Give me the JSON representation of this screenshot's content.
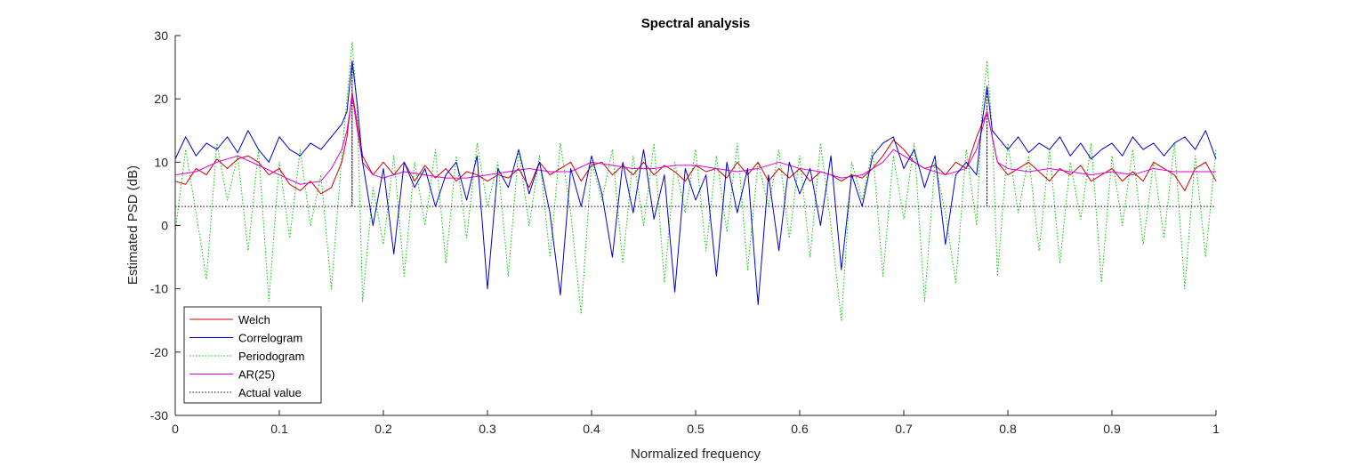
{
  "chart_data": {
    "type": "line",
    "title": "Spectral analysis",
    "xlabel": "Normalized frequency",
    "ylabel": "Estimated PSD (dB)",
    "xlim": [
      0,
      1
    ],
    "ylim": [
      -30,
      30
    ],
    "xticks": [
      0,
      0.1,
      0.2,
      0.3,
      0.4,
      0.5,
      0.6,
      0.7,
      0.8,
      0.9,
      1
    ],
    "xtick_labels": [
      "0",
      "0.1",
      "0.2",
      "0.3",
      "0.4",
      "0.5",
      "0.6",
      "0.7",
      "0.8",
      "0.9",
      "1"
    ],
    "yticks": [
      -30,
      -20,
      -10,
      0,
      10,
      20,
      30
    ],
    "ytick_labels": [
      "-30",
      "-20",
      "-10",
      "0",
      "10",
      "20",
      "30"
    ],
    "grid": false,
    "legend_position": "bottom-left",
    "series": [
      {
        "name": "Welch",
        "color": "#d40000",
        "style": "solid",
        "x": [
          0,
          0.01,
          0.02,
          0.03,
          0.04,
          0.05,
          0.06,
          0.07,
          0.08,
          0.09,
          0.1,
          0.11,
          0.12,
          0.13,
          0.14,
          0.15,
          0.16,
          0.165,
          0.17,
          0.175,
          0.18,
          0.19,
          0.2,
          0.21,
          0.22,
          0.23,
          0.24,
          0.25,
          0.26,
          0.27,
          0.28,
          0.29,
          0.3,
          0.31,
          0.32,
          0.33,
          0.34,
          0.35,
          0.36,
          0.37,
          0.38,
          0.39,
          0.4,
          0.41,
          0.42,
          0.43,
          0.44,
          0.45,
          0.46,
          0.47,
          0.48,
          0.49,
          0.5,
          0.51,
          0.52,
          0.53,
          0.54,
          0.55,
          0.56,
          0.57,
          0.58,
          0.59,
          0.6,
          0.61,
          0.62,
          0.63,
          0.64,
          0.65,
          0.66,
          0.67,
          0.68,
          0.69,
          0.7,
          0.71,
          0.72,
          0.73,
          0.74,
          0.75,
          0.76,
          0.77,
          0.775,
          0.78,
          0.785,
          0.79,
          0.8,
          0.81,
          0.82,
          0.83,
          0.84,
          0.85,
          0.86,
          0.87,
          0.88,
          0.89,
          0.9,
          0.91,
          0.92,
          0.93,
          0.94,
          0.95,
          0.96,
          0.97,
          0.98,
          0.99,
          1
        ],
        "y": [
          7,
          6.5,
          9,
          8,
          10.5,
          9,
          10.5,
          11,
          10,
          8,
          9,
          6.5,
          5.5,
          7,
          5,
          6,
          10,
          14,
          21,
          16,
          11,
          8,
          10,
          8,
          10,
          7,
          9.5,
          7.5,
          9,
          7,
          8.5,
          8,
          7,
          8,
          7.5,
          9,
          6,
          10,
          8,
          9,
          10,
          7,
          9.5,
          10,
          8,
          9.5,
          8,
          10,
          8,
          9.5,
          8.5,
          7,
          9.5,
          8.5,
          9,
          7.5,
          10,
          8,
          10,
          7,
          9,
          7.5,
          9,
          7,
          8.5,
          8,
          7,
          8,
          7.5,
          9,
          11,
          13.5,
          12,
          10,
          9,
          9.5,
          8,
          10,
          9,
          14,
          16,
          18,
          14,
          10,
          8,
          9,
          10,
          8.5,
          7,
          9,
          8,
          9.5,
          7,
          8,
          9,
          7,
          8.5,
          7,
          10,
          9,
          8,
          5.5,
          9,
          10,
          7
        ]
      },
      {
        "name": "Correlogram",
        "color": "#0000d0",
        "style": "solid",
        "x": [
          0,
          0.01,
          0.02,
          0.03,
          0.04,
          0.05,
          0.06,
          0.07,
          0.08,
          0.09,
          0.1,
          0.11,
          0.12,
          0.13,
          0.14,
          0.15,
          0.16,
          0.165,
          0.17,
          0.175,
          0.18,
          0.19,
          0.2,
          0.21,
          0.22,
          0.23,
          0.24,
          0.25,
          0.26,
          0.27,
          0.28,
          0.29,
          0.3,
          0.31,
          0.32,
          0.33,
          0.34,
          0.35,
          0.36,
          0.37,
          0.38,
          0.39,
          0.4,
          0.41,
          0.42,
          0.43,
          0.44,
          0.45,
          0.46,
          0.47,
          0.48,
          0.49,
          0.5,
          0.51,
          0.52,
          0.53,
          0.54,
          0.55,
          0.56,
          0.57,
          0.58,
          0.59,
          0.6,
          0.61,
          0.62,
          0.63,
          0.64,
          0.65,
          0.66,
          0.67,
          0.68,
          0.69,
          0.7,
          0.71,
          0.72,
          0.73,
          0.74,
          0.75,
          0.76,
          0.77,
          0.775,
          0.78,
          0.785,
          0.79,
          0.8,
          0.81,
          0.82,
          0.83,
          0.84,
          0.85,
          0.86,
          0.87,
          0.88,
          0.89,
          0.9,
          0.91,
          0.92,
          0.93,
          0.94,
          0.95,
          0.96,
          0.97,
          0.98,
          0.99,
          1
        ],
        "y": [
          10.5,
          14,
          11,
          13,
          12,
          14,
          11.5,
          15,
          12,
          10,
          14,
          12,
          11,
          13,
          12,
          14,
          16,
          18,
          26,
          19,
          10,
          0,
          9,
          -4.5,
          10,
          6,
          9,
          3,
          8,
          10,
          4,
          11,
          -10,
          9,
          6,
          12,
          5,
          10,
          2,
          -11,
          9,
          3,
          11,
          5,
          -5,
          10,
          2,
          12,
          1,
          8,
          -10.5,
          9,
          4,
          8,
          -8,
          10,
          2,
          9,
          -12.5,
          8,
          -4,
          10,
          5,
          9,
          0,
          11,
          -7,
          8,
          3,
          11,
          13,
          14,
          9,
          12,
          6,
          11,
          -3,
          8,
          10,
          8,
          16,
          22,
          15,
          14,
          12,
          14,
          11.5,
          13,
          12,
          14,
          11,
          13,
          10.5,
          12,
          13,
          11,
          14,
          12,
          13,
          11,
          13,
          14,
          12,
          15,
          10.5
        ]
      },
      {
        "name": "Periodogram",
        "color": "#00c800",
        "style": "dotted",
        "x": [
          0,
          0.01,
          0.02,
          0.03,
          0.04,
          0.05,
          0.06,
          0.07,
          0.08,
          0.09,
          0.1,
          0.11,
          0.12,
          0.13,
          0.14,
          0.15,
          0.16,
          0.165,
          0.17,
          0.175,
          0.18,
          0.19,
          0.2,
          0.21,
          0.22,
          0.23,
          0.24,
          0.25,
          0.26,
          0.27,
          0.28,
          0.29,
          0.3,
          0.31,
          0.32,
          0.33,
          0.34,
          0.35,
          0.36,
          0.37,
          0.38,
          0.39,
          0.4,
          0.41,
          0.42,
          0.43,
          0.44,
          0.45,
          0.46,
          0.47,
          0.48,
          0.49,
          0.5,
          0.51,
          0.52,
          0.53,
          0.54,
          0.55,
          0.56,
          0.57,
          0.58,
          0.59,
          0.6,
          0.61,
          0.62,
          0.63,
          0.64,
          0.65,
          0.66,
          0.67,
          0.68,
          0.69,
          0.7,
          0.71,
          0.72,
          0.73,
          0.74,
          0.75,
          0.76,
          0.77,
          0.775,
          0.78,
          0.785,
          0.79,
          0.8,
          0.81,
          0.82,
          0.83,
          0.84,
          0.85,
          0.86,
          0.87,
          0.88,
          0.89,
          0.9,
          0.91,
          0.92,
          0.93,
          0.94,
          0.95,
          0.96,
          0.97,
          0.98,
          0.99,
          1
        ],
        "y": [
          -1,
          12,
          2,
          -8.5,
          13,
          4,
          11,
          -4,
          12,
          -12,
          10,
          -2,
          12,
          0,
          8,
          -10,
          11,
          20,
          29,
          18,
          -12,
          6,
          -3,
          11,
          -8,
          10,
          0,
          12,
          -6,
          11,
          -2,
          13,
          3,
          10,
          -8,
          12,
          0,
          11,
          -5,
          13,
          2,
          -14,
          10,
          4,
          12,
          -6,
          11,
          0,
          13,
          -9,
          10,
          2,
          12,
          -4,
          11,
          -1,
          13,
          -7,
          10,
          3,
          12,
          -2,
          11,
          -5,
          13,
          0,
          -15,
          10,
          4,
          12,
          -8,
          11,
          1,
          13,
          -12,
          10,
          2,
          -9,
          12,
          0,
          18,
          26,
          15,
          -8,
          13,
          2,
          11,
          -4,
          12,
          -6,
          10,
          1,
          13,
          -9,
          11,
          0,
          12,
          -3,
          10,
          -2,
          13,
          -10,
          11,
          -5,
          12
        ]
      },
      {
        "name": "AR(25)",
        "color": "#e000e0",
        "style": "solid",
        "x": [
          0,
          0.02,
          0.04,
          0.06,
          0.08,
          0.1,
          0.12,
          0.14,
          0.15,
          0.16,
          0.165,
          0.17,
          0.175,
          0.18,
          0.19,
          0.2,
          0.22,
          0.24,
          0.26,
          0.28,
          0.3,
          0.32,
          0.34,
          0.36,
          0.38,
          0.4,
          0.42,
          0.44,
          0.46,
          0.48,
          0.5,
          0.52,
          0.54,
          0.56,
          0.58,
          0.6,
          0.62,
          0.64,
          0.66,
          0.68,
          0.69,
          0.7,
          0.72,
          0.74,
          0.76,
          0.77,
          0.775,
          0.78,
          0.785,
          0.79,
          0.8,
          0.82,
          0.84,
          0.86,
          0.88,
          0.9,
          0.92,
          0.94,
          0.96,
          0.98,
          1
        ],
        "y": [
          8,
          8.5,
          10,
          11,
          9.5,
          8,
          6.5,
          7,
          9,
          12,
          15,
          20.5,
          15,
          10,
          8,
          7.5,
          8.5,
          8,
          7.5,
          7.5,
          8,
          8.5,
          9,
          8.5,
          8.5,
          10,
          9.5,
          9,
          9,
          9.5,
          9.5,
          9,
          8.5,
          9,
          10,
          9,
          8.5,
          7.5,
          8,
          10,
          12,
          11,
          9,
          8,
          9,
          12,
          15,
          18,
          14,
          10,
          9,
          8.5,
          9,
          8.5,
          8,
          8.5,
          8,
          9,
          8.5,
          8.5,
          8.5
        ]
      },
      {
        "name": "Actual value",
        "color": "#000000",
        "style": "dotted",
        "x": [
          0,
          0.1699,
          0.1699,
          0.17,
          0.17,
          0.1701,
          0.1701,
          0.7799,
          0.7799,
          0.78,
          0.78,
          0.7801,
          0.7801,
          1
        ],
        "y": [
          3,
          3,
          25,
          25,
          3,
          3,
          3,
          3,
          22,
          22,
          3,
          3,
          3,
          3
        ]
      }
    ]
  }
}
